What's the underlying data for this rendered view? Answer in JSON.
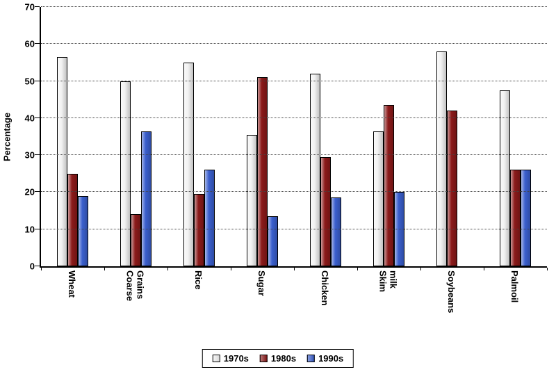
{
  "chart_data": {
    "type": "bar",
    "title": "",
    "xlabel": "",
    "ylabel": "Percentage",
    "ylim": [
      0,
      70
    ],
    "ytick_step": 10,
    "yticks": [
      0,
      10,
      20,
      30,
      40,
      50,
      60,
      70
    ],
    "grid": "horizontal-dotted",
    "legend_position": "bottom",
    "categories": [
      "Wheat",
      "Coarse Grains",
      "Rice",
      "Sugar",
      "Chicken",
      "Skim milk",
      "Soybeans",
      "Palmoil"
    ],
    "series": [
      {
        "name": "1970s",
        "color": "#f2f2f2",
        "values": [
          56.5,
          50,
          55,
          35.5,
          52,
          36.5,
          58,
          47.5
        ]
      },
      {
        "name": "1980s",
        "color": "#8b1a1a",
        "values": [
          25,
          14,
          19.5,
          51,
          29.5,
          43.5,
          42,
          26
        ]
      },
      {
        "name": "1990s",
        "color": "#3a5fcd",
        "values": [
          19,
          36.5,
          26,
          13.5,
          18.5,
          20,
          0,
          26
        ]
      }
    ]
  }
}
